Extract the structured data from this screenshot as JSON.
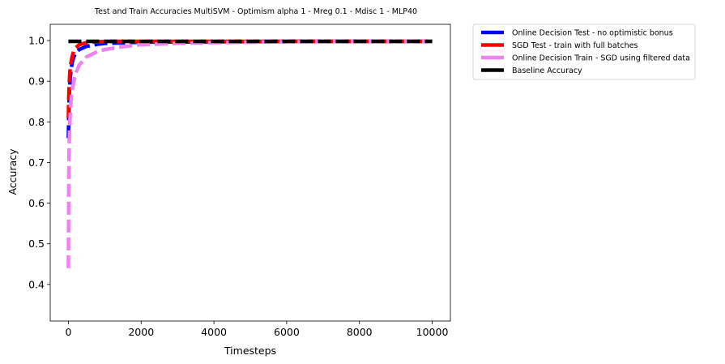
{
  "chart_data": {
    "type": "line",
    "title": "Test and Train Accuracies MultiSVM - Optimism alpha 1 - Mreg 0.1 - Mdisc 1 - MLP40",
    "xlabel": "Timesteps",
    "ylabel": "Accuracy",
    "xlim": [
      -500,
      10500
    ],
    "ylim": [
      0.31,
      1.04
    ],
    "xticks": [
      0,
      2000,
      4000,
      6000,
      8000,
      10000
    ],
    "xtick_labels": [
      "0",
      "2000",
      "4000",
      "6000",
      "8000",
      "10000"
    ],
    "yticks": [
      0.4,
      0.5,
      0.6,
      0.7,
      0.8,
      0.9,
      1.0
    ],
    "ytick_labels": [
      "0.4",
      "0.5",
      "0.6",
      "0.7",
      "0.8",
      "0.9",
      "1.0"
    ],
    "grid": false,
    "legend_position": "outside-upper-right",
    "series": [
      {
        "name": "Online Decision Test - no optimistic bonus",
        "color": "#0000ff",
        "style": "dashed",
        "x": [
          0,
          10,
          25,
          50,
          100,
          150,
          200,
          300,
          500,
          800,
          1000,
          2000,
          4000,
          6000,
          8000,
          10000
        ],
        "y": [
          0.76,
          0.82,
          0.87,
          0.91,
          0.945,
          0.96,
          0.97,
          0.978,
          0.986,
          0.991,
          0.993,
          0.996,
          0.997,
          0.998,
          0.998,
          0.998
        ]
      },
      {
        "name": "SGD Test - train with full batches",
        "color": "#ff0000",
        "style": "dashed",
        "x": [
          0,
          10,
          25,
          50,
          100,
          150,
          200,
          300,
          500,
          800,
          1000,
          2000,
          4000,
          6000,
          8000,
          10000
        ],
        "y": [
          0.81,
          0.86,
          0.9,
          0.935,
          0.96,
          0.975,
          0.982,
          0.99,
          0.995,
          0.997,
          0.998,
          0.998,
          0.998,
          0.998,
          0.998,
          0.998
        ]
      },
      {
        "name": "Online Decision Train - SGD using filtered data",
        "color": "#ee82ee",
        "style": "dashed",
        "x": [
          0,
          5,
          10,
          20,
          40,
          60,
          100,
          150,
          200,
          300,
          500,
          800,
          1000,
          1500,
          2000,
          3000,
          4000,
          6000,
          8000,
          10000
        ],
        "y": [
          0.44,
          0.55,
          0.65,
          0.74,
          0.8,
          0.84,
          0.875,
          0.9,
          0.92,
          0.94,
          0.96,
          0.973,
          0.978,
          0.985,
          0.99,
          0.993,
          0.995,
          0.997,
          0.998,
          0.998
        ]
      },
      {
        "name": "Baseline Accuracy",
        "color": "#000000",
        "style": "dashed",
        "x": [
          0,
          10000
        ],
        "y": [
          0.998,
          0.998
        ]
      }
    ]
  }
}
